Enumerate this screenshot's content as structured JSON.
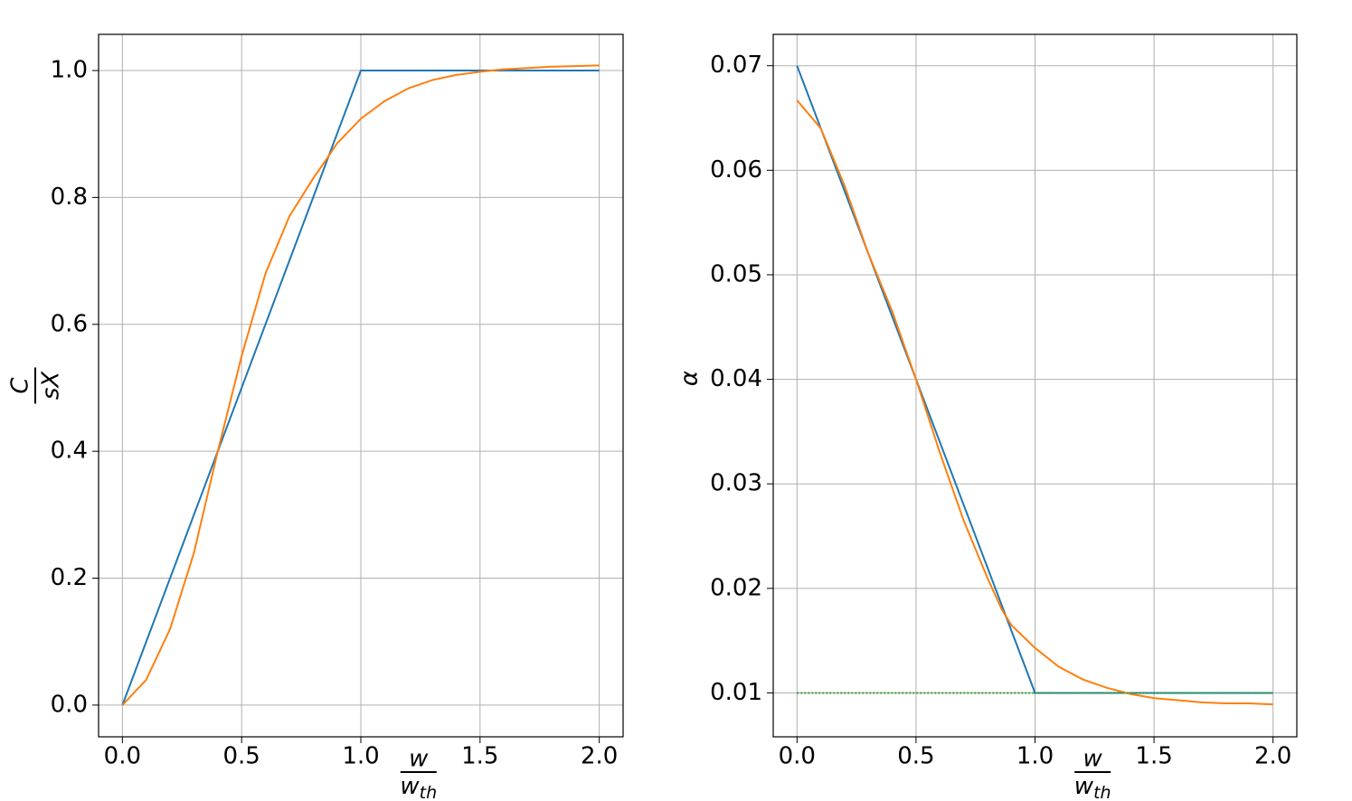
{
  "chart_data": [
    {
      "type": "line",
      "xlabel": {
        "numerator": "w",
        "denominator": "w",
        "subscript": "th"
      },
      "ylabel": {
        "numerator": "C",
        "denominator": "sX"
      },
      "xlim": [
        -0.1,
        2.1
      ],
      "ylim": [
        -0.05,
        1.057
      ],
      "xticks": [
        {
          "value": 0,
          "label": "0.0"
        },
        0.5,
        {
          "value": 1,
          "label": "1.0"
        },
        1.5,
        {
          "value": 2,
          "label": "2.0"
        }
      ],
      "yticks": [
        {
          "value": 0,
          "label": "0.0"
        },
        0.2,
        0.4,
        0.6,
        0.8,
        {
          "value": 1,
          "label": "1.0"
        }
      ],
      "grid": true,
      "series": [
        {
          "color": "#1f77b4",
          "linestyle": "solid",
          "x": [
            0,
            1,
            2
          ],
          "values": [
            0,
            1,
            1
          ]
        },
        {
          "color": "#ff7f0e",
          "linestyle": "solid",
          "x": [
            0,
            0.1,
            0.2,
            0.3,
            0.4,
            0.5,
            0.6,
            0.7,
            0.8,
            0.85,
            0.9,
            1.0,
            1.1,
            1.2,
            1.3,
            1.4,
            1.5,
            1.6,
            1.7,
            1.8,
            1.9,
            2.0
          ],
          "values": [
            0,
            0.04,
            0.12,
            0.24,
            0.4,
            0.55,
            0.68,
            0.77,
            0.83,
            0.857,
            0.885,
            0.924,
            0.952,
            0.972,
            0.985,
            0.993,
            0.998,
            1.002,
            1.004,
            1.006,
            1.007,
            1.008
          ]
        }
      ]
    },
    {
      "type": "line",
      "xlabel": {
        "numerator": "w",
        "denominator": "w",
        "subscript": "th"
      },
      "ylabel": "α",
      "xlim": [
        -0.1,
        2.1
      ],
      "ylim": [
        0.0058,
        0.073
      ],
      "xticks": [
        {
          "value": 0,
          "label": "0.0"
        },
        0.5,
        {
          "value": 1,
          "label": "1.0"
        },
        1.5,
        {
          "value": 2,
          "label": "2.0"
        }
      ],
      "yticks": [
        0.01,
        0.02,
        0.03,
        0.04,
        0.05,
        0.06,
        0.07
      ],
      "grid": true,
      "series": [
        {
          "color": "#1f77b4",
          "linestyle": "solid",
          "x": [
            0,
            1,
            2
          ],
          "values": [
            0.07,
            0.01,
            0.01
          ]
        },
        {
          "color": "#ff7f0e",
          "linestyle": "solid",
          "x": [
            0,
            0.1,
            0.2,
            0.3,
            0.4,
            0.5,
            0.6,
            0.7,
            0.8,
            0.86,
            0.9,
            1.0,
            1.1,
            1.2,
            1.3,
            1.4,
            1.5,
            1.6,
            1.7,
            1.8,
            1.9,
            2.0
          ],
          "values": [
            0.0667,
            0.064,
            0.0585,
            0.052,
            0.0465,
            0.04,
            0.033,
            0.0265,
            0.021,
            0.018,
            0.0165,
            0.0143,
            0.0125,
            0.0113,
            0.0105,
            0.0099,
            0.0095,
            0.0093,
            0.0091,
            0.009,
            0.009,
            0.0089
          ]
        },
        {
          "color": "#2ca02c",
          "linestyle": "dotted",
          "x": [
            0,
            2
          ],
          "values": [
            0.01,
            0.01
          ]
        }
      ]
    }
  ]
}
